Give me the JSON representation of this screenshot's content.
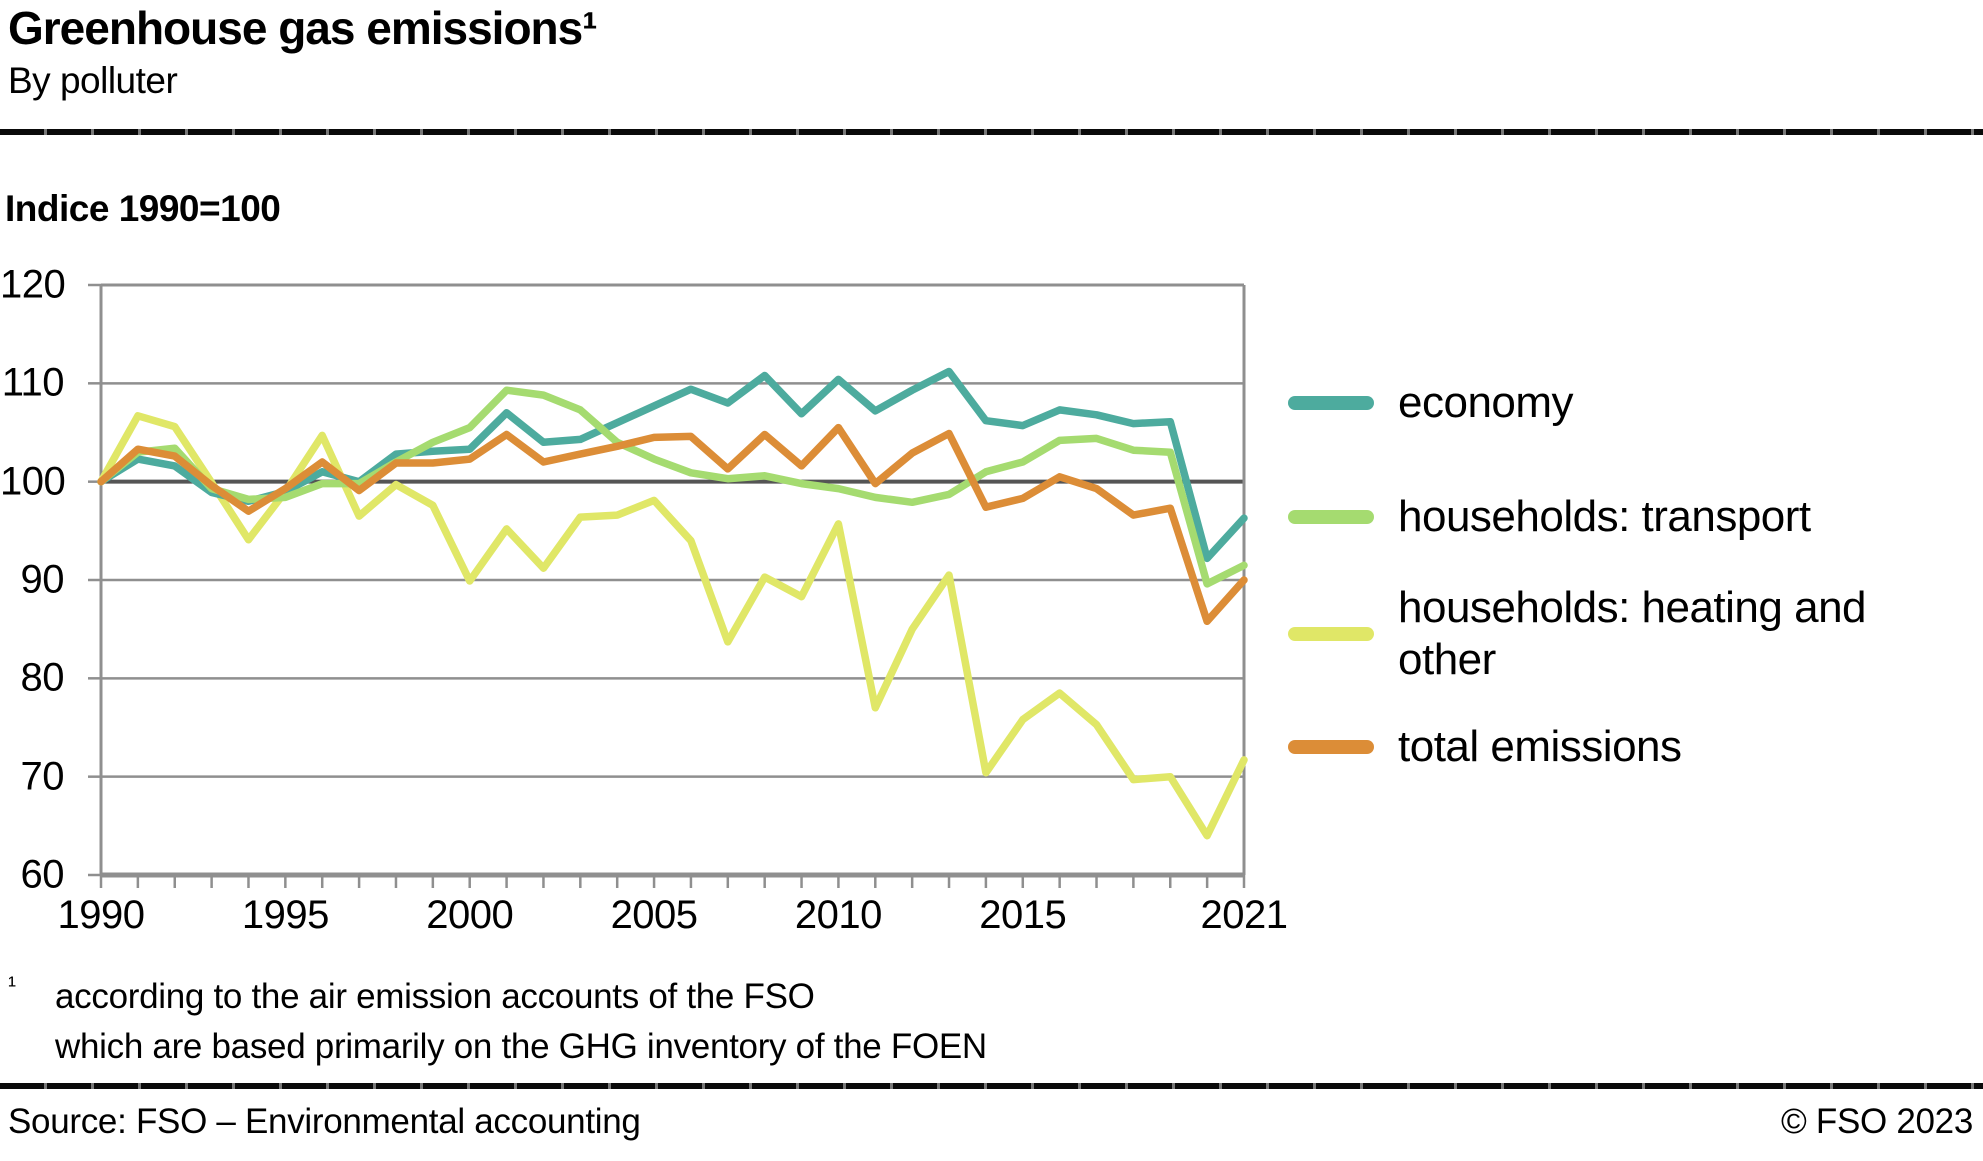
{
  "header": {
    "title": "Greenhouse gas emissions¹",
    "subtitle": "By polluter"
  },
  "chart": {
    "axis_title": "Indice 1990=100",
    "y_ticks": [
      120,
      110,
      100,
      90,
      80,
      70,
      60
    ],
    "x_ticks": [
      {
        "label": "1990",
        "year": 1990
      },
      {
        "label": "1995",
        "year": 1995
      },
      {
        "label": "2000",
        "year": 2000
      },
      {
        "label": "2005",
        "year": 2005
      },
      {
        "label": "2010",
        "year": 2010
      },
      {
        "label": "2015",
        "year": 2015
      },
      {
        "label": "2021",
        "year": 2021
      }
    ]
  },
  "chart_data": {
    "type": "line",
    "title": "Greenhouse gas emissions¹ — By polluter",
    "ylabel": "Indice 1990=100",
    "xlim": [
      1990,
      2021
    ],
    "ylim": [
      60,
      120
    ],
    "grid": true,
    "baseline": 100,
    "legend_position": "right",
    "x": [
      1990,
      1991,
      1992,
      1993,
      1994,
      1995,
      1996,
      1997,
      1998,
      1999,
      2000,
      2001,
      2002,
      2003,
      2004,
      2005,
      2006,
      2007,
      2008,
      2009,
      2010,
      2011,
      2012,
      2013,
      2014,
      2015,
      2016,
      2017,
      2018,
      2019,
      2020,
      2021
    ],
    "series": [
      {
        "name": "economy",
        "color": "#4DAB9E",
        "values": [
          100,
          102.3,
          101.6,
          98.9,
          98.0,
          99.0,
          101.0,
          100.0,
          102.8,
          103.1,
          103.3,
          107.0,
          104.0,
          104.3,
          106.0,
          107.7,
          109.4,
          108.0,
          110.8,
          106.9,
          110.4,
          107.2,
          109.3,
          111.2,
          106.2,
          105.7,
          107.3,
          106.8,
          105.9,
          106.1,
          92.2,
          96.3
        ]
      },
      {
        "name": "households: transport",
        "color": "#A5DB70",
        "values": [
          100,
          103.0,
          103.4,
          99.3,
          98.2,
          98.4,
          99.8,
          99.8,
          102.0,
          104.0,
          105.5,
          109.3,
          108.8,
          107.3,
          104.0,
          102.3,
          100.9,
          100.3,
          100.6,
          99.8,
          99.3,
          98.4,
          97.9,
          98.7,
          101.0,
          102.0,
          104.2,
          104.4,
          103.2,
          103.0,
          89.6,
          91.5
        ]
      },
      {
        "name": "households: heating and other",
        "color": "#E0E767",
        "values": [
          100,
          106.7,
          105.6,
          99.9,
          94.1,
          99.0,
          104.7,
          96.5,
          99.7,
          97.6,
          89.9,
          95.2,
          91.2,
          96.4,
          96.6,
          98.1,
          94.0,
          83.7,
          90.3,
          88.3,
          95.7,
          77.0,
          85.0,
          90.5,
          70.4,
          75.8,
          78.5,
          75.3,
          69.7,
          70.0,
          64.0,
          71.7
        ]
      },
      {
        "name": "total emissions",
        "color": "#DC8D37",
        "values": [
          100,
          103.3,
          102.6,
          99.6,
          97.0,
          99.3,
          102.0,
          99.1,
          101.9,
          101.9,
          102.3,
          104.8,
          102.0,
          102.8,
          103.6,
          104.5,
          104.6,
          101.3,
          104.8,
          101.6,
          105.5,
          99.8,
          102.9,
          104.9,
          97.4,
          98.3,
          100.5,
          99.3,
          96.6,
          97.3,
          85.8,
          90.0
        ]
      }
    ]
  },
  "legend": {
    "items": [
      {
        "label": "economy",
        "color": "#4DAB9E"
      },
      {
        "label": "households: transport",
        "color": "#A5DB70"
      },
      {
        "label": "households: heating and",
        "label2": "other",
        "color": "#E0E767"
      },
      {
        "label": "total emissions",
        "color": "#DC8D37"
      }
    ]
  },
  "footnote": {
    "marker": "¹",
    "line1": "according to the air emission accounts of the FSO",
    "line2": "which are based primarily on the GHG inventory of the FOEN"
  },
  "footer": {
    "source": "Source: FSO – Environmental accounting",
    "copyright": "© FSO 2023"
  }
}
